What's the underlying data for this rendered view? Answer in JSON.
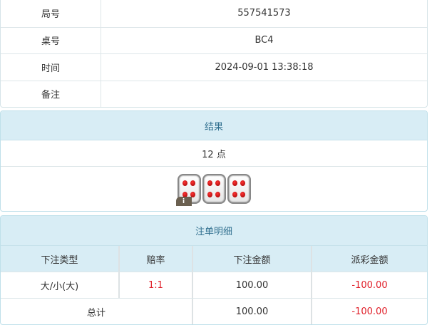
{
  "info": [
    {
      "label": "局号",
      "value": "557541573"
    },
    {
      "label": "桌号",
      "value": "BC4"
    },
    {
      "label": "时间",
      "value": "2024-09-01 13:38:18"
    },
    {
      "label": "备注",
      "value": ""
    }
  ],
  "result": {
    "title": "结果",
    "points": "12 点",
    "dice": [
      4,
      4,
      4
    ],
    "info_badge": "i"
  },
  "bets": {
    "title": "注单明细",
    "columns": [
      "下注类型",
      "赔率",
      "下注金额",
      "派彩金额"
    ],
    "rows": [
      {
        "type": "大/小(大)",
        "odds": "1:1",
        "amount": "100.00",
        "payout": "-100.00"
      }
    ],
    "total": {
      "label": "总计",
      "amount": "100.00",
      "payout": "-100.00"
    }
  },
  "colors": {
    "negative": "#e0202a",
    "header_bg": "#d8edf5",
    "header_text": "#31708f"
  }
}
